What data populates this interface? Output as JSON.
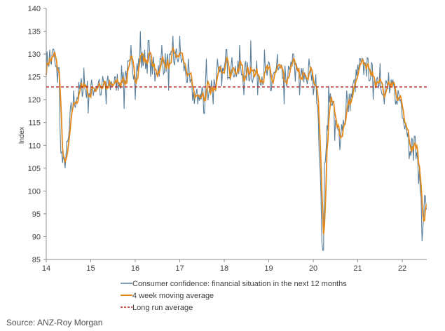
{
  "chart_data": {
    "type": "line",
    "title": "",
    "xlabel": "",
    "ylabel": "Index",
    "xlim": [
      14,
      22.55
    ],
    "ylim": [
      85,
      140
    ],
    "y_ticks": [
      85,
      90,
      95,
      100,
      105,
      110,
      115,
      120,
      125,
      130,
      135,
      140
    ],
    "x_ticks": [
      14,
      15,
      16,
      17,
      18,
      19,
      20,
      21,
      22
    ],
    "x_tick_labels": [
      "14",
      "15",
      "16",
      "17",
      "18",
      "19",
      "20",
      "21",
      "22"
    ],
    "grid": "off",
    "legend_placement": "bottom",
    "source": "Source: ANZ-Roy Morgan",
    "series": [
      {
        "name": "Consumer confidence: financial situation in the next 12 months",
        "style": "solid",
        "color": "#5a7f9a",
        "anchors": [
          [
            14.0,
            128
          ],
          [
            14.05,
            129
          ],
          [
            14.1,
            128
          ],
          [
            14.15,
            130
          ],
          [
            14.2,
            127
          ],
          [
            14.25,
            125
          ],
          [
            14.3,
            115
          ],
          [
            14.35,
            107
          ],
          [
            14.4,
            105
          ],
          [
            14.45,
            108
          ],
          [
            14.5,
            111
          ],
          [
            14.55,
            117
          ],
          [
            14.6,
            119
          ],
          [
            14.7,
            121
          ],
          [
            14.8,
            123
          ],
          [
            14.9,
            122
          ],
          [
            15.0,
            122
          ],
          [
            15.1,
            123
          ],
          [
            15.2,
            124
          ],
          [
            15.3,
            123
          ],
          [
            15.4,
            123
          ],
          [
            15.5,
            124
          ],
          [
            15.6,
            124
          ],
          [
            15.7,
            125
          ],
          [
            15.8,
            126
          ],
          [
            15.9,
            127
          ],
          [
            16.0,
            127
          ],
          [
            16.1,
            128
          ],
          [
            16.2,
            129
          ],
          [
            16.3,
            128
          ],
          [
            16.4,
            127
          ],
          [
            16.5,
            127
          ],
          [
            16.6,
            128
          ],
          [
            16.7,
            128
          ],
          [
            16.8,
            128
          ],
          [
            16.9,
            129
          ],
          [
            17.0,
            130
          ],
          [
            17.1,
            127
          ],
          [
            17.2,
            124
          ],
          [
            17.3,
            121
          ],
          [
            17.4,
            121
          ],
          [
            17.5,
            122
          ],
          [
            17.6,
            122
          ],
          [
            17.7,
            123
          ],
          [
            17.8,
            124
          ],
          [
            17.9,
            125
          ],
          [
            18.0,
            126
          ],
          [
            18.1,
            127
          ],
          [
            18.2,
            127
          ],
          [
            18.3,
            126
          ],
          [
            18.4,
            126
          ],
          [
            18.5,
            126
          ],
          [
            18.6,
            126
          ],
          [
            18.7,
            126
          ],
          [
            18.8,
            126
          ],
          [
            18.9,
            125
          ],
          [
            19.0,
            126
          ],
          [
            19.1,
            126
          ],
          [
            19.2,
            126
          ],
          [
            19.3,
            125
          ],
          [
            19.4,
            125
          ],
          [
            19.5,
            126
          ],
          [
            19.6,
            126
          ],
          [
            19.7,
            125
          ],
          [
            19.8,
            125
          ],
          [
            19.9,
            125
          ],
          [
            20.0,
            125
          ],
          [
            20.05,
            124
          ],
          [
            20.1,
            120
          ],
          [
            20.15,
            105
          ],
          [
            20.2,
            88
          ],
          [
            20.25,
            105
          ],
          [
            20.3,
            113
          ],
          [
            20.35,
            118
          ],
          [
            20.4,
            121
          ],
          [
            20.45,
            118
          ],
          [
            20.5,
            115
          ],
          [
            20.55,
            112
          ],
          [
            20.6,
            113
          ],
          [
            20.7,
            116
          ],
          [
            20.8,
            119
          ],
          [
            20.9,
            122
          ],
          [
            21.0,
            126
          ],
          [
            21.1,
            127
          ],
          [
            21.2,
            127
          ],
          [
            21.3,
            126
          ],
          [
            21.4,
            125
          ],
          [
            21.5,
            124
          ],
          [
            21.6,
            123
          ],
          [
            21.7,
            122
          ],
          [
            21.8,
            122
          ],
          [
            21.9,
            121
          ],
          [
            22.0,
            119
          ],
          [
            22.05,
            116
          ],
          [
            22.1,
            114
          ],
          [
            22.15,
            112
          ],
          [
            22.2,
            110
          ],
          [
            22.25,
            109
          ],
          [
            22.3,
            108
          ],
          [
            22.35,
            105
          ],
          [
            22.4,
            102
          ],
          [
            22.45,
            93
          ],
          [
            22.5,
            98
          ],
          [
            22.55,
            97
          ]
        ],
        "spikes": [
          [
            14.08,
            131
          ],
          [
            14.18,
            131
          ],
          [
            14.28,
            127
          ],
          [
            14.42,
            105
          ],
          [
            14.62,
            122
          ],
          [
            14.85,
            127
          ],
          [
            14.95,
            117
          ],
          [
            15.22,
            121
          ],
          [
            15.35,
            119
          ],
          [
            15.55,
            125
          ],
          [
            15.75,
            118
          ],
          [
            15.9,
            132
          ],
          [
            16.0,
            120
          ],
          [
            16.12,
            135
          ],
          [
            16.3,
            133
          ],
          [
            16.45,
            124
          ],
          [
            16.6,
            132
          ],
          [
            16.75,
            122
          ],
          [
            16.85,
            134
          ],
          [
            17.0,
            134
          ],
          [
            17.2,
            129
          ],
          [
            17.4,
            119
          ],
          [
            17.55,
            117
          ],
          [
            17.6,
            129
          ],
          [
            17.75,
            119
          ],
          [
            17.85,
            129
          ],
          [
            18.05,
            131
          ],
          [
            18.2,
            126
          ],
          [
            18.35,
            132
          ],
          [
            18.45,
            121
          ],
          [
            18.6,
            133
          ],
          [
            18.75,
            121
          ],
          [
            18.9,
            131
          ],
          [
            19.05,
            122
          ],
          [
            19.2,
            130
          ],
          [
            19.35,
            119
          ],
          [
            19.55,
            130
          ],
          [
            19.7,
            121
          ],
          [
            19.9,
            129
          ],
          [
            20.0,
            121
          ],
          [
            20.22,
            87
          ],
          [
            20.35,
            123
          ],
          [
            20.48,
            111
          ],
          [
            20.6,
            109
          ],
          [
            20.75,
            122
          ],
          [
            20.9,
            124
          ],
          [
            21.05,
            129
          ],
          [
            21.18,
            128
          ],
          [
            21.35,
            120
          ],
          [
            21.5,
            128
          ],
          [
            21.6,
            119
          ],
          [
            21.7,
            126
          ],
          [
            21.85,
            119
          ],
          [
            22.0,
            116
          ],
          [
            22.08,
            115
          ],
          [
            22.15,
            107
          ],
          [
            22.28,
            112
          ],
          [
            22.38,
            105
          ],
          [
            22.44,
            89
          ],
          [
            22.5,
            99
          ]
        ]
      },
      {
        "name": "4 week moving average",
        "style": "solid",
        "color": "#e48a1c"
      },
      {
        "name": "Long run average",
        "style": "dashed",
        "color": "#c0201a",
        "value": 122.8
      }
    ]
  }
}
